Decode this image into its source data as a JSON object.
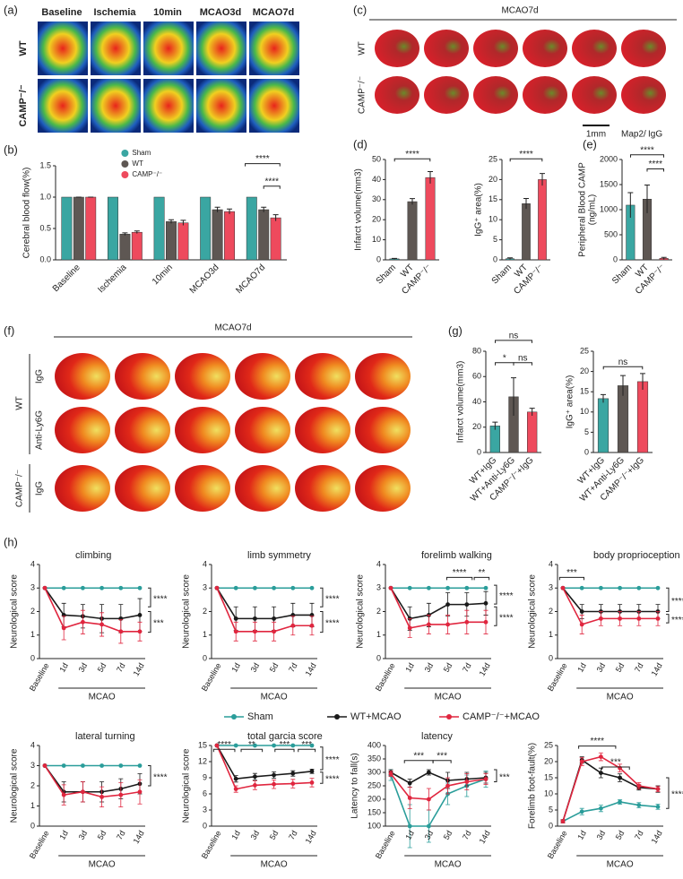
{
  "figure": {
    "a": {
      "label": "(a)",
      "columns": [
        "Baseline",
        "Ischemia",
        "10min",
        "MCAO3d",
        "MCAO7d"
      ],
      "rows": [
        "WT",
        "CAMP⁻/⁻"
      ]
    },
    "c": {
      "label": "(c)",
      "title": "MCAO7d",
      "rows": [
        "WT",
        "CAMP⁻/⁻"
      ],
      "scale": "1mm",
      "stain_red": "Map2",
      "stain_sep": "/",
      "stain_green": "IgG"
    },
    "f": {
      "label": "(f)",
      "title": "MCAO7d",
      "groups": [
        "WT",
        "CAMP⁻/⁻"
      ],
      "rows": [
        "IgG",
        "Anti-Ly6G",
        "IgG"
      ]
    }
  },
  "chart_data": [
    {
      "type": "bar",
      "panel": "(b)",
      "ylabel": "Cerebral blood flow(%)",
      "categories": [
        "Baseline",
        "Ischemia",
        "10min",
        "MCAO3d",
        "MCAO7d"
      ],
      "series": [
        {
          "name": "Sham",
          "color": "#3aa6a2",
          "values": [
            1,
            1,
            1,
            1,
            1
          ]
        },
        {
          "name": "WT",
          "color": "#5e5753",
          "values": [
            1,
            0.41,
            0.61,
            0.8,
            0.8
          ],
          "errors": [
            0,
            0.02,
            0.03,
            0.04,
            0.04
          ]
        },
        {
          "name": "CAMP⁻/⁻",
          "color": "#ee4a5d",
          "values": [
            1,
            0.44,
            0.59,
            0.77,
            0.67
          ],
          "errors": [
            0,
            0.02,
            0.04,
            0.04,
            0.05
          ]
        }
      ],
      "ylim": [
        0,
        1.5
      ],
      "yticks": [
        {
          "value": 0,
          "label": "0.0"
        },
        0.5,
        {
          "value": 1,
          "label": "1.0"
        },
        1.5
      ],
      "legend": "top",
      "annotations": [
        "****",
        "****"
      ]
    },
    {
      "type": "bar",
      "panel": "(d)",
      "ylabel": "Infarct volume(mm3)",
      "categories": [
        "Sham",
        "WT",
        "CAMP⁻/⁻"
      ],
      "values": [
        0.5,
        29,
        41
      ],
      "errors": [
        0.2,
        1.5,
        3
      ],
      "colors": [
        "#3aa6a2",
        "#5e5753",
        "#ee4a5d"
      ],
      "ylim": [
        0,
        50
      ],
      "yticks": [
        0,
        10,
        20,
        30,
        40,
        50
      ],
      "annotations": [
        "****"
      ]
    },
    {
      "type": "bar",
      "ylabel": "IgG⁺ area(%)",
      "categories": [
        "Sham",
        "WT",
        "CAMP⁻/⁻"
      ],
      "values": [
        0.3,
        14,
        20
      ],
      "errors": [
        0.2,
        1.3,
        1.5
      ],
      "colors": [
        "#3aa6a2",
        "#5e5753",
        "#ee4a5d"
      ],
      "ylim": [
        0,
        25
      ],
      "yticks": [
        0,
        5,
        10,
        15,
        20,
        25
      ],
      "annotations": [
        "****"
      ]
    },
    {
      "type": "bar",
      "panel": "(e)",
      "ylabel": [
        "Peripheral Blood CAMP",
        "(ng/mL)"
      ],
      "categories": [
        "Sham",
        "WT",
        "CAMP⁻/⁻"
      ],
      "values": [
        1090,
        1210,
        30
      ],
      "errors": [
        250,
        280,
        20
      ],
      "colors": [
        "#3aa6a2",
        "#5e5753",
        "#ee4a5d"
      ],
      "ylim": [
        0,
        2000
      ],
      "yticks": [
        0,
        500,
        1000,
        1500,
        2000
      ],
      "annotations": [
        "****",
        "****"
      ]
    },
    {
      "type": "bar",
      "panel": "(g)",
      "ylabel": "Infarct volume(mm3)",
      "categories": [
        "WT+IgG",
        "WT+Anti-Ly6G",
        "CAMP⁻/⁻+IgG"
      ],
      "values": [
        21,
        44,
        32
      ],
      "errors": [
        3,
        15,
        3
      ],
      "colors": [
        "#3aa6a2",
        "#5e5753",
        "#ee4a5d"
      ],
      "ylim": [
        0,
        80
      ],
      "yticks": [
        0,
        20,
        40,
        60,
        80
      ],
      "annotations": [
        "ns",
        "*",
        "ns"
      ]
    },
    {
      "type": "bar",
      "ylabel": "IgG⁺ area(%)",
      "categories": [
        "WT+IgG",
        "WT+Anti-Ly6G",
        "CAMP⁻/⁻+IgG"
      ],
      "values": [
        13.3,
        16.5,
        17.5
      ],
      "errors": [
        1,
        2.5,
        2
      ],
      "colors": [
        "#3aa6a2",
        "#5e5753",
        "#ee4a5d"
      ],
      "ylim": [
        0,
        25
      ],
      "yticks": [
        0,
        5,
        10,
        15,
        20,
        25
      ],
      "annotations": [
        "ns"
      ]
    },
    {
      "type": "line",
      "panel": "(h)",
      "categories": [
        "Baseline",
        "1d",
        "3d",
        "5d",
        "7d",
        "14d"
      ],
      "group_label": "MCAO",
      "series": [
        {
          "name": "Sham",
          "color": "#2a9d9a"
        },
        {
          "name": "WT+MCAO",
          "color": "#1a1a1a"
        },
        {
          "name": "CAMP⁻/⁻+MCAO",
          "color": "#e0263f"
        }
      ],
      "legend": "center",
      "plots": [
        {
          "title": "climbing",
          "ylabel": "Neurological score",
          "ylim": [
            0,
            4
          ],
          "yticks": [
            0,
            1,
            2,
            3,
            4
          ],
          "lines": [
            {
              "values": [
                3,
                3,
                3,
                3,
                3,
                3
              ]
            },
            {
              "values": [
                3,
                1.85,
                1.8,
                1.7,
                1.7,
                1.85
              ],
              "errors": [
                0,
                0.5,
                0.5,
                0.6,
                0.6,
                0.7
              ]
            },
            {
              "values": [
                3,
                1.3,
                1.55,
                1.45,
                1.15,
                1.15
              ],
              "errors": [
                0,
                0.5,
                0.5,
                0.5,
                0.5,
                0.4
              ]
            }
          ],
          "annotations": [
            "****",
            "***"
          ]
        },
        {
          "title": "limb symmetry",
          "ylabel": "Neurological score",
          "ylim": [
            0,
            4
          ],
          "yticks": [
            0,
            1,
            2,
            3,
            4
          ],
          "lines": [
            {
              "values": [
                3,
                3,
                3,
                3,
                3,
                3
              ]
            },
            {
              "values": [
                3,
                1.7,
                1.7,
                1.7,
                1.85,
                1.85
              ],
              "errors": [
                0,
                0.5,
                0.5,
                0.5,
                0.5,
                0.5
              ]
            },
            {
              "values": [
                3,
                1.15,
                1.15,
                1.15,
                1.4,
                1.4
              ],
              "errors": [
                0,
                0.4,
                0.4,
                0.4,
                0.4,
                0.4
              ]
            }
          ],
          "annotations": [
            "****",
            "****"
          ]
        },
        {
          "title": "forelimb walking",
          "ylabel": "Neurological score",
          "ylim": [
            0,
            4
          ],
          "yticks": [
            0,
            1,
            2,
            3,
            4
          ],
          "lines": [
            {
              "values": [
                3,
                3,
                3,
                3,
                3,
                3
              ]
            },
            {
              "values": [
                3,
                1.7,
                1.85,
                2.3,
                2.3,
                2.35
              ],
              "errors": [
                0,
                0.5,
                0.5,
                0.5,
                0.5,
                0.5
              ]
            },
            {
              "values": [
                3,
                1.3,
                1.45,
                1.45,
                1.55,
                1.55
              ],
              "errors": [
                0,
                0.4,
                0.4,
                0.4,
                0.5,
                0.5
              ]
            }
          ],
          "annotations": [
            "****",
            "**",
            "****",
            "****"
          ]
        },
        {
          "title": "body proprioception",
          "ylabel": "Neurological score",
          "ylim": [
            0,
            4
          ],
          "yticks": [
            0,
            1,
            2,
            3,
            4
          ],
          "lines": [
            {
              "values": [
                3,
                3,
                3,
                3,
                3,
                3
              ]
            },
            {
              "values": [
                3,
                2,
                2,
                2,
                2,
                2
              ],
              "errors": [
                0,
                0.3,
                0.3,
                0.3,
                0.3,
                0.3
              ]
            },
            {
              "values": [
                3,
                1.45,
                1.7,
                1.7,
                1.7,
                1.7
              ],
              "errors": [
                0,
                0.4,
                0.3,
                0.3,
                0.3,
                0.3
              ]
            }
          ],
          "annotations": [
            "***",
            "****",
            "****"
          ]
        },
        {
          "title": "lateral turning",
          "ylabel": "Neurological score",
          "ylim": [
            0,
            4
          ],
          "yticks": [
            0,
            1,
            2,
            3,
            4
          ],
          "lines": [
            {
              "values": [
                3,
                3,
                3,
                3,
                3,
                3
              ]
            },
            {
              "values": [
                3,
                1.7,
                1.7,
                1.7,
                1.85,
                2.1
              ],
              "errors": [
                0,
                0.5,
                0.5,
                0.5,
                0.5,
                0.5
              ]
            },
            {
              "values": [
                3,
                1.55,
                1.7,
                1.45,
                1.55,
                1.7
              ],
              "errors": [
                0,
                0.5,
                0.5,
                0.5,
                0.6,
                0.6
              ]
            }
          ],
          "annotations": [
            "****"
          ]
        },
        {
          "title": "total garcia score",
          "ylabel": "Neurological score",
          "ylim": [
            0,
            15
          ],
          "yticks": [
            0,
            3,
            6,
            9,
            12,
            15
          ],
          "lines": [
            {
              "values": [
                15,
                15,
                15,
                15,
                15,
                15
              ]
            },
            {
              "values": [
                15,
                8.8,
                9.2,
                9.5,
                9.8,
                10.2
              ],
              "errors": [
                0,
                0.6,
                0.6,
                0.6,
                0.5,
                0.4
              ]
            },
            {
              "values": [
                15,
                6.9,
                7.6,
                7.8,
                7.9,
                8.1
              ],
              "errors": [
                0,
                0.6,
                0.8,
                0.8,
                0.8,
                0.8
              ]
            }
          ],
          "annotations": [
            "****",
            "**",
            "***",
            "***",
            "****",
            "****"
          ]
        },
        {
          "title": "latency",
          "ylabel": "Latency to fall(s)",
          "ylim": [
            100,
            400
          ],
          "yticks": [
            100,
            150,
            200,
            250,
            300,
            350,
            400
          ],
          "lines": [
            {
              "values": [
                290,
                100,
                100,
                220,
                250,
                275
              ],
              "errors": [
                20,
                80,
                60,
                40,
                40,
                30
              ]
            },
            {
              "values": [
                300,
                260,
                300,
                270,
                275,
                280
              ],
              "errors": [
                10,
                15,
                10,
                30,
                25,
                20
              ]
            },
            {
              "values": [
                295,
                205,
                200,
                250,
                265,
                275
              ],
              "errors": [
                10,
                40,
                40,
                30,
                30,
                20
              ]
            }
          ],
          "annotations": [
            "***",
            "***",
            "***"
          ]
        },
        {
          "ylabel": "Forelimb foot-fault(%)",
          "ylim": [
            0,
            25
          ],
          "yticks": [
            0,
            5,
            10,
            15,
            20,
            25
          ],
          "lines": [
            {
              "values": [
                1.5,
                4.5,
                5.5,
                7.5,
                6.5,
                6
              ],
              "errors": [
                0.5,
                1,
                1,
                0.7,
                0.8,
                0.8
              ]
            },
            {
              "values": [
                1.5,
                20.5,
                16.5,
                15,
                12,
                11.5
              ],
              "errors": [
                0.5,
                1,
                1.5,
                1.2,
                0.8,
                1
              ]
            },
            {
              "values": [
                1.5,
                20,
                21.5,
                18,
                12.5,
                11.5
              ],
              "errors": [
                0.5,
                1.2,
                1.2,
                1.2,
                1,
                0.8
              ]
            }
          ],
          "annotations": [
            "****",
            "***",
            "****"
          ]
        }
      ]
    }
  ]
}
